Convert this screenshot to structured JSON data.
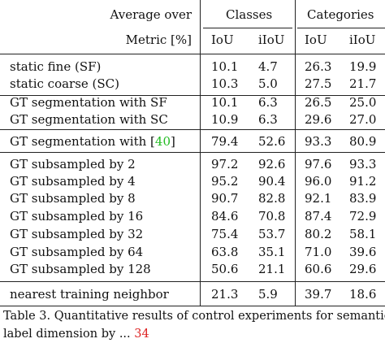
{
  "table": {
    "header": {
      "average_over": "Average over",
      "metric": "Metric [%]",
      "group_classes": "Classes",
      "group_categories": "Categories",
      "iou": "IoU",
      "iiou": "iIoU"
    },
    "rows": [
      {
        "label": "static fine (SF)",
        "iou_cls": "10.1",
        "iiou_cls": "4.7",
        "iou_cat": "26.3",
        "iiou_cat": "19.9"
      },
      {
        "label": "static coarse (SC)",
        "iou_cls": "10.3",
        "iiou_cls": "5.0",
        "iou_cat": "27.5",
        "iiou_cat": "21.7"
      },
      {
        "label": "GT segmentation with SF",
        "iou_cls": "10.1",
        "iiou_cls": "6.3",
        "iou_cat": "26.5",
        "iiou_cat": "25.0"
      },
      {
        "label": "GT segmentation with SC",
        "iou_cls": "10.9",
        "iiou_cls": "6.3",
        "iou_cat": "29.6",
        "iiou_cat": "27.0"
      },
      {
        "label": "GT segmentation with [",
        "ref": "40",
        "label_end": "]",
        "iou_cls": "79.4",
        "iiou_cls": "52.6",
        "iou_cat": "93.3",
        "iiou_cat": "80.9"
      },
      {
        "label": "GT subsampled by 2",
        "iou_cls": "97.2",
        "iiou_cls": "92.6",
        "iou_cat": "97.6",
        "iiou_cat": "93.3"
      },
      {
        "label": "GT subsampled by 4",
        "iou_cls": "95.2",
        "iiou_cls": "90.4",
        "iou_cat": "96.0",
        "iiou_cat": "91.2"
      },
      {
        "label": "GT subsampled by 8",
        "iou_cls": "90.7",
        "iiou_cls": "82.8",
        "iou_cat": "92.1",
        "iiou_cat": "83.9"
      },
      {
        "label": "GT subsampled by 16",
        "iou_cls": "84.6",
        "iiou_cls": "70.8",
        "iou_cat": "87.4",
        "iiou_cat": "72.9"
      },
      {
        "label": "GT subsampled by 32",
        "iou_cls": "75.4",
        "iiou_cls": "53.7",
        "iou_cat": "80.2",
        "iiou_cat": "58.1"
      },
      {
        "label": "GT subsampled by 64",
        "iou_cls": "63.8",
        "iiou_cls": "35.1",
        "iou_cat": "71.0",
        "iiou_cat": "39.6"
      },
      {
        "label": "GT subsampled by 128",
        "iou_cls": "50.6",
        "iiou_cls": "21.1",
        "iou_cat": "60.6",
        "iiou_cat": "29.6"
      },
      {
        "label": "nearest training neighbor",
        "iou_cls": "21.3",
        "iiou_cls": "5.9",
        "iou_cat": "39.7",
        "iiou_cat": "18.6"
      }
    ]
  },
  "caption": {
    "line1": "Table 3. Quantitative results of control experiments for semantic",
    "line2_start": "label dimension by ",
    "line2_mid": "...",
    "line2_ref": "34"
  }
}
